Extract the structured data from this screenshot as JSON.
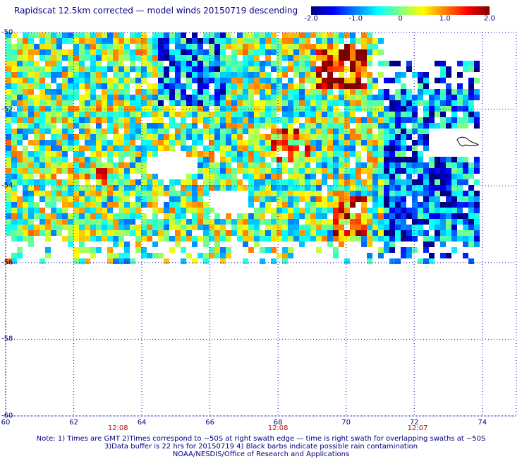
{
  "title": "Rapidscat 12.5km corrected — model winds 20150719 descending",
  "colorbar": {
    "min": -2.0,
    "max": 2.0,
    "ticks": [
      "-2.0",
      "-1.0",
      "0",
      "1.0",
      "2.0"
    ],
    "tick_values": [
      -2.0,
      -1.0,
      0,
      1.0,
      2.0
    ],
    "colors": [
      "#000080",
      "#0000ff",
      "#0080ff",
      "#00ffff",
      "#80ff80",
      "#ffff00",
      "#ff8000",
      "#ff0000",
      "#800000"
    ]
  },
  "map": {
    "lat_range": [
      -50,
      -60
    ],
    "lon_range": [
      60,
      75
    ],
    "lat_labels": [
      {
        "value": -50,
        "text": "-50"
      },
      {
        "value": -52,
        "text": "-52"
      },
      {
        "value": -54,
        "text": "-54"
      },
      {
        "value": -56,
        "text": "-56"
      },
      {
        "value": -58,
        "text": "-58"
      },
      {
        "value": -60,
        "text": "-60"
      }
    ],
    "lon_labels": [
      {
        "value": 60,
        "text": "60"
      },
      {
        "value": 62,
        "text": "62"
      },
      {
        "value": 64,
        "text": "64"
      },
      {
        "value": 66,
        "text": "66"
      },
      {
        "value": 68,
        "text": "68"
      },
      {
        "value": 70,
        "text": "70"
      },
      {
        "value": 72,
        "text": "72"
      },
      {
        "value": 74,
        "text": "74"
      }
    ],
    "time_labels": [
      {
        "lon": 63.3,
        "text": "12:08"
      },
      {
        "lon": 68.0,
        "text": "12:08"
      },
      {
        "lon": 72.1,
        "text": "12:07"
      }
    ],
    "grid": "dotted",
    "grid_color": "#0000c0"
  },
  "notes": [
    "Note: 1) Times are GMT 2)Times correspond to ~50S at right swath edge — time is right swath for overlapping swaths at ~50S",
    "3)Data buffer is 22 hrs for 20150719 4) Black barbs indicate possible rain contamination",
    "NOAA/NESDIS/Office of Research and Applications"
  ]
}
